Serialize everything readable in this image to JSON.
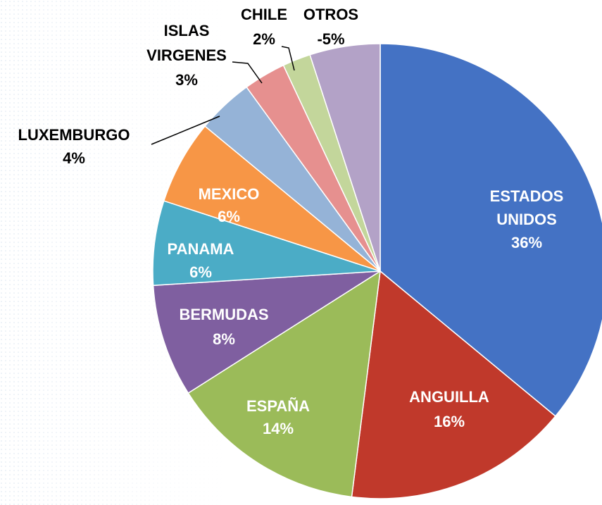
{
  "chart_data": {
    "type": "pie",
    "categories": [
      [
        "ESTADOS",
        "UNIDOS"
      ],
      [
        "ANGUILLA"
      ],
      [
        "ESPAÑA"
      ],
      [
        "BERMUDAS"
      ],
      [
        "PANAMA"
      ],
      [
        "MEXICO"
      ],
      [
        "LUXEMBURGO"
      ],
      [
        "ISLAS",
        "VIRGENES"
      ],
      [
        "CHILE"
      ],
      [
        "OTROS"
      ]
    ],
    "values": [
      36,
      16,
      14,
      8,
      6,
      6,
      4,
      3,
      2,
      -5
    ],
    "value_labels": [
      "36%",
      "16%",
      "14%",
      "8%",
      "6%",
      "6%",
      "4%",
      "3%",
      "2%",
      "-5%"
    ],
    "colors": [
      "#4472c4",
      "#c0392b",
      "#9bbb59",
      "#7f5fa0",
      "#4bacc6",
      "#f79646",
      "#95b3d7",
      "#e6908f",
      "#c3d69b",
      "#b3a2c7"
    ]
  }
}
